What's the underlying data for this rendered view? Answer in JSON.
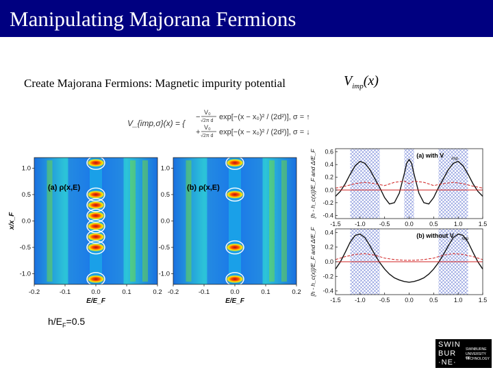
{
  "slide": {
    "title": "Manipulating Majorana Fermions",
    "subtitle": "Create Majorana Fermions: Magnetic impurity potential",
    "vimp_main": "V",
    "vimp_sub": "imp",
    "vimp_arg": "(x)",
    "note_prefix": "h/E",
    "note_sub": "F",
    "note_suffix": "=0.5"
  },
  "formula": {
    "lhs": "V_{imp,σ}(x) = {",
    "top_num": "V₀",
    "top_den": "√2π d",
    "bot_num": "V₀",
    "bot_den": "√2π d",
    "exp": "exp[−(x − x₀)² / (2d²)], σ = ↑",
    "exp2": "exp[−(x − x₀)² / (2d²)], σ = ↓",
    "top_sign": "−",
    "bot_sign": "+"
  },
  "logo": {
    "lines": [
      "SWIN",
      "BUR",
      "·NE·"
    ],
    "right": [
      "SWINBURNE",
      "UNIVERSITY OF",
      "TECHNOLOGY"
    ]
  },
  "colors": {
    "title_bg": "#000080",
    "title_fg": "#ffffff",
    "accent_red": "#d02020",
    "hatch_blue": "#5a6fd0"
  },
  "chart_data": [
    {
      "type": "heatmap",
      "panel_label": "(a) ρ(x,E)",
      "xlabel": "E/E_F",
      "ylabel": "x/x_F",
      "x_ticks": [
        "-0.2",
        "-0.1",
        "0.0",
        "0.1",
        "0.2"
      ],
      "y_ticks": [
        "1.0",
        "0.5",
        "0.0",
        "-0.5",
        "-1.0"
      ],
      "xlim": [
        -0.2,
        0.2
      ],
      "ylim": [
        -1.2,
        1.2
      ],
      "circles_y": [
        1.1,
        0.5,
        0.3,
        0.1,
        -0.1,
        -0.3,
        -0.5,
        -1.1
      ]
    },
    {
      "type": "heatmap",
      "panel_label": "(b) ρ(x,E)",
      "xlabel": "E/E_F",
      "x_ticks": [
        "-0.2",
        "-0.1",
        "0.0",
        "0.1",
        "0.2"
      ],
      "y_ticks": [
        "1.0",
        "0.5",
        "0.0",
        "-0.5",
        "-1.0"
      ],
      "xlim": [
        -0.2,
        0.2
      ],
      "ylim": [
        -1.2,
        1.2
      ],
      "circles_y": [
        1.1,
        0.5,
        -0.5,
        -1.1
      ]
    },
    {
      "type": "line",
      "panel_label": "(a) with V",
      "panel_label_sub": "imp",
      "ylabel": "[h - h_c(x)]/E_F and Δ/E_F",
      "x_ticks": [
        "-1.5",
        "-1.0",
        "-0.5",
        "0.0",
        "0.5",
        "1.0",
        "1.5"
      ],
      "y_ticks": [
        "0.6",
        "0.4",
        "0.2",
        "0.0",
        "-0.2",
        "-0.4"
      ],
      "xlim": [
        -1.5,
        1.5
      ],
      "ylim": [
        -0.45,
        0.65
      ],
      "hatched_regions": [
        [
          -1.2,
          -0.6
        ],
        [
          -0.1,
          0.1
        ],
        [
          0.6,
          1.2
        ]
      ],
      "series": [
        {
          "values_x": [
            -1.5,
            -1.4,
            -1.3,
            -1.2,
            -1.1,
            -1.0,
            -0.9,
            -0.8,
            -0.7,
            -0.6,
            -0.5,
            -0.4,
            -0.3,
            -0.2,
            -0.1,
            -0.05,
            0.0,
            0.05,
            0.1,
            0.2,
            0.3,
            0.4,
            0.5,
            0.6,
            0.7,
            0.8,
            0.9,
            1.0,
            1.1,
            1.2,
            1.3,
            1.4,
            1.5
          ],
          "values_y": [
            -0.1,
            -0.02,
            0.1,
            0.25,
            0.38,
            0.45,
            0.42,
            0.32,
            0.18,
            0.04,
            -0.12,
            -0.22,
            -0.2,
            -0.05,
            0.25,
            0.42,
            0.48,
            0.42,
            0.25,
            -0.05,
            -0.2,
            -0.22,
            -0.12,
            0.04,
            0.18,
            0.32,
            0.42,
            0.45,
            0.38,
            0.25,
            0.1,
            -0.02,
            -0.1
          ]
        },
        {
          "values_x": [
            -1.5,
            -1.3,
            -1.1,
            -0.9,
            -0.7,
            -0.5,
            -0.3,
            -0.1,
            0.0,
            0.1,
            0.3,
            0.5,
            0.7,
            0.9,
            1.1,
            1.3,
            1.5
          ],
          "values_y": [
            0.03,
            0.06,
            0.1,
            0.12,
            0.1,
            0.07,
            0.12,
            0.14,
            0.1,
            0.14,
            0.12,
            0.07,
            0.1,
            0.12,
            0.1,
            0.06,
            0.03
          ]
        },
        {
          "values_x": [
            -1.5,
            1.5
          ],
          "values_y": [
            0.0,
            0.0
          ]
        }
      ]
    },
    {
      "type": "line",
      "panel_label": "(b) without V",
      "panel_label_sub": "imp",
      "ylabel": "[h - h_c(x)]/E_F and Δ/E_F",
      "x_ticks": [
        "-1.5",
        "-1.0",
        "-0.5",
        "0.0",
        "0.5",
        "1.0",
        "1.5"
      ],
      "y_ticks": [
        "0.4",
        "0.2",
        "0.0",
        "-0.2",
        "-0.4"
      ],
      "xlim": [
        -1.5,
        1.5
      ],
      "ylim": [
        -0.45,
        0.45
      ],
      "hatched_regions": [
        [
          -1.2,
          -0.6
        ],
        [
          0.6,
          1.2
        ]
      ],
      "series": [
        {
          "values_x": [
            -1.5,
            -1.4,
            -1.3,
            -1.2,
            -1.1,
            -1.0,
            -0.9,
            -0.8,
            -0.7,
            -0.6,
            -0.5,
            -0.4,
            -0.3,
            -0.2,
            -0.1,
            0.0,
            0.1,
            0.2,
            0.3,
            0.4,
            0.5,
            0.6,
            0.7,
            0.8,
            0.9,
            1.0,
            1.1,
            1.2,
            1.3,
            1.4,
            1.5
          ],
          "values_y": [
            -0.1,
            0.0,
            0.13,
            0.27,
            0.36,
            0.38,
            0.33,
            0.22,
            0.1,
            -0.01,
            -0.1,
            -0.17,
            -0.22,
            -0.25,
            -0.27,
            -0.28,
            -0.27,
            -0.25,
            -0.22,
            -0.17,
            -0.1,
            -0.01,
            0.1,
            0.22,
            0.33,
            0.38,
            0.36,
            0.27,
            0.13,
            0.0,
            -0.1
          ]
        },
        {
          "values_x": [
            -1.5,
            -1.3,
            -1.1,
            -0.9,
            -0.7,
            -0.5,
            -0.3,
            -0.1,
            0.1,
            0.3,
            0.5,
            0.7,
            0.9,
            1.1,
            1.3,
            1.5
          ],
          "values_y": [
            0.03,
            0.07,
            0.1,
            0.11,
            0.09,
            0.05,
            0.03,
            0.02,
            0.02,
            0.03,
            0.05,
            0.09,
            0.11,
            0.1,
            0.07,
            0.03
          ]
        },
        {
          "values_x": [
            -1.5,
            1.5
          ],
          "values_y": [
            0.0,
            0.0
          ]
        }
      ]
    }
  ]
}
